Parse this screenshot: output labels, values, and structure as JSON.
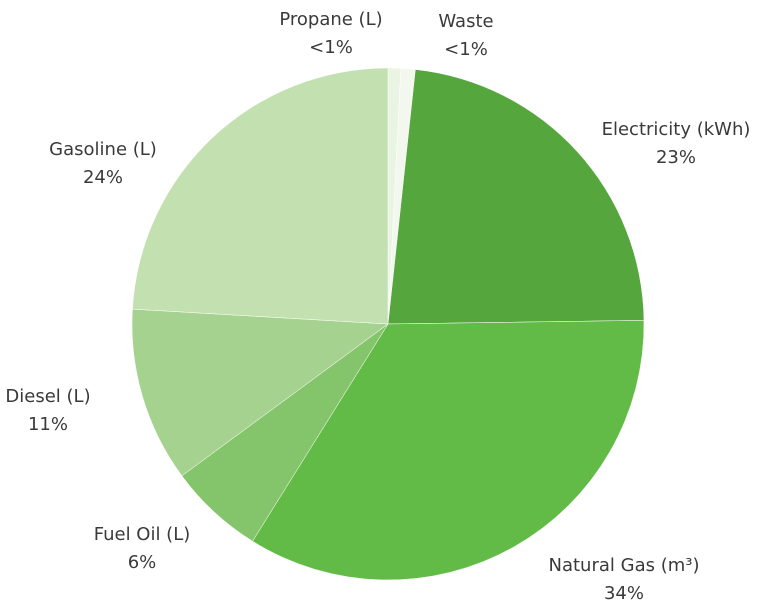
{
  "chart_data": {
    "type": "pie",
    "categories": [
      "Propane (L)",
      "Waste",
      "Electricity (kWh)",
      "Natural Gas (m³)",
      "Fuel Oil (L)",
      "Diesel (L)",
      "Gasoline (L)"
    ],
    "values": [
      0.8,
      0.9,
      23,
      34,
      6,
      11,
      24
    ],
    "value_labels": [
      "<1%",
      "<1%",
      "23%",
      "34%",
      "6%",
      "11%",
      "24%"
    ],
    "colors": [
      "#e9f4e2",
      "#f2f8ed",
      "#54a63d",
      "#62bb46",
      "#84c46a",
      "#a5d28f",
      "#c2e0b0"
    ]
  }
}
